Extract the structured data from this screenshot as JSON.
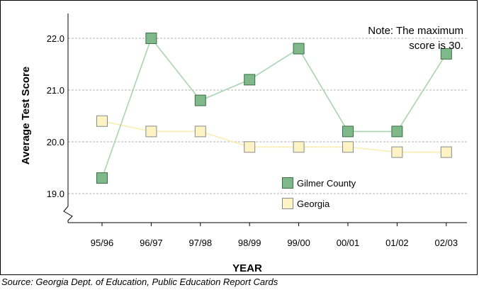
{
  "chart_data": {
    "type": "line",
    "title": "",
    "xlabel": "YEAR",
    "ylabel": "Average Test Score",
    "categories": [
      "95/96",
      "96/97",
      "97/98",
      "98/99",
      "99/00",
      "00/01",
      "01/02",
      "02/03"
    ],
    "y_ticks": [
      "22.0",
      "21.0",
      "20.0",
      "19.0"
    ],
    "y_tick_values": [
      22.0,
      21.0,
      20.0,
      19.0
    ],
    "ylim": [
      18.6,
      22.4
    ],
    "axis_break": true,
    "grid": "horizontal dashed",
    "legend_placement": "center-right",
    "series": [
      {
        "name": "Gilmer County",
        "values": [
          19.3,
          22.0,
          20.8,
          21.2,
          21.8,
          20.2,
          20.2,
          21.7
        ],
        "line_color": "#a8d5b0",
        "marker_color": "#7fb98a",
        "marker_border": "#3a7046"
      },
      {
        "name": "Georgia",
        "values": [
          20.4,
          20.2,
          20.2,
          19.9,
          19.9,
          19.9,
          19.8,
          19.8
        ],
        "line_color": "#fbeeb0",
        "marker_color": "#fdf3c4",
        "marker_border": "#8a8a8a"
      }
    ],
    "annotations": [
      "Note:  The maximum",
      "score is 30."
    ]
  },
  "source": "Source:  Georgia Dept. of Education, Public Education Report Cards"
}
